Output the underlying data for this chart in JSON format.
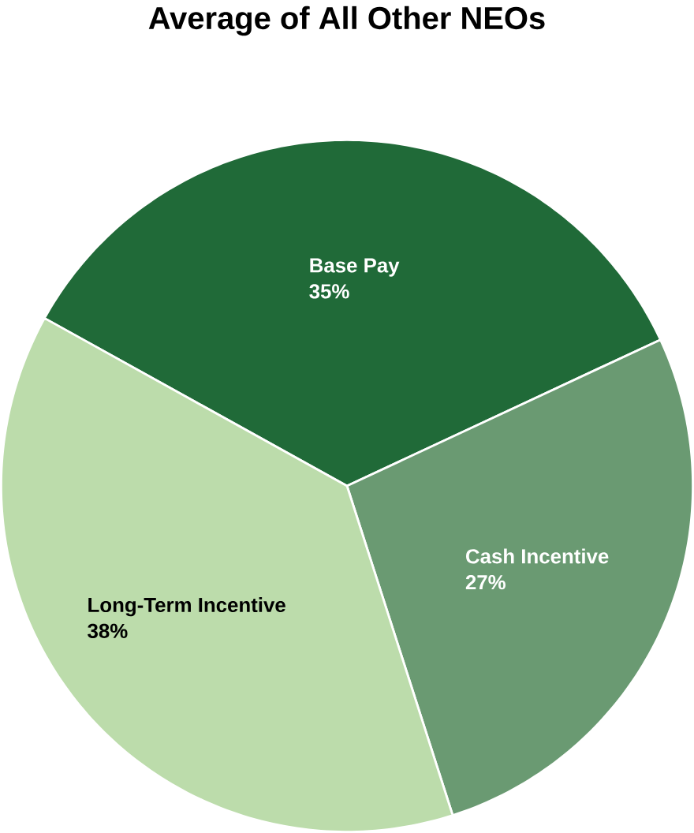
{
  "chart_data": {
    "type": "pie",
    "title": "Average of All Other NEOs",
    "categories": [
      "Base Pay",
      "Cash Incentive",
      "Long-Term Incentive"
    ],
    "values": [
      35,
      27,
      38
    ],
    "value_labels": [
      "35%",
      "27%",
      "38%"
    ],
    "colors": [
      "#206a38",
      "#6a9a72",
      "#bcdcab"
    ]
  }
}
